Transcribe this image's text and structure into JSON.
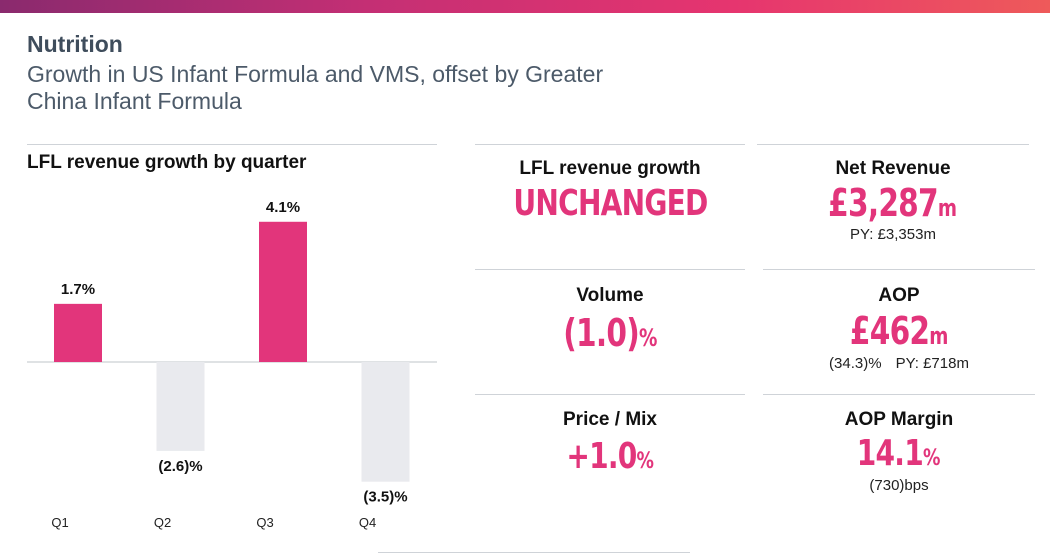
{
  "header": {
    "title": "Nutrition",
    "subtitle": "Growth in US Infant Formula and VMS, offset by Greater China Infant Formula"
  },
  "chart_data": {
    "type": "bar",
    "title": "LFL revenue growth by quarter",
    "categories": [
      "Q1",
      "Q2",
      "Q3",
      "Q4"
    ],
    "values": [
      1.7,
      -2.6,
      4.1,
      -3.5
    ],
    "value_labels": [
      "1.7%",
      "(2.6)%",
      "4.1%",
      "(3.5)%"
    ],
    "positive_color": "#e2357b",
    "negative_color": "#e9eaee",
    "xlabel": "",
    "ylabel": "",
    "ylim": [
      -3.6,
      4.2
    ],
    "grid": false,
    "legend": "none"
  },
  "kpis": {
    "lfl_revenue_growth": {
      "label": "LFL revenue growth",
      "value": "UNCHANGED"
    },
    "net_revenue": {
      "label": "Net Revenue",
      "value": "£3,287",
      "unit": "m",
      "sub": "PY: £3,353m"
    },
    "volume": {
      "label": "Volume",
      "value": "(1.0)",
      "unit": "%"
    },
    "aop": {
      "label": "AOP",
      "value": "£462",
      "unit": "m",
      "sub_change": "(34.3)%",
      "sub_py": "PY: £718m"
    },
    "price_mix": {
      "label": "Price / Mix",
      "value": "+1.0",
      "unit": "%"
    },
    "aop_margin": {
      "label": "AOP Margin",
      "value": "14.1",
      "unit": "%",
      "sub": "(730)bps"
    }
  },
  "colors": {
    "accent": "#e2357b",
    "title": "#3f4d5c",
    "divider": "#cfd3d8"
  }
}
